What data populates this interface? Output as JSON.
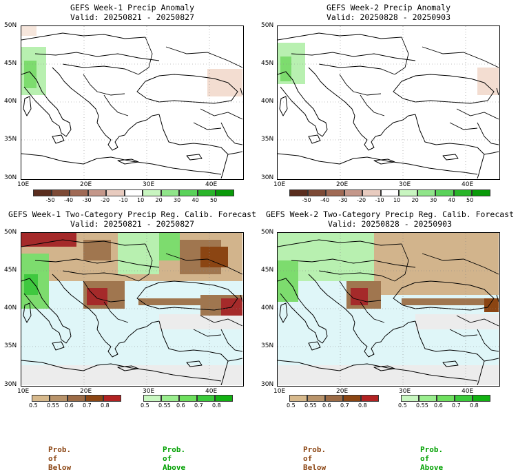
{
  "panels": {
    "tl": {
      "title_line1": "GEFS Week-1 Precip Anomaly",
      "title_line2": "Valid: 20250821 - 20250827",
      "lat_ticks": [
        "50N",
        "45N",
        "40N",
        "35N",
        "30N"
      ],
      "lon_ticks": [
        "10E",
        "20E",
        "30E",
        "40E"
      ]
    },
    "tr": {
      "title_line1": "GEFS Week-2 Precip Anomaly",
      "title_line2": "Valid: 20250828 - 20250903",
      "lat_ticks": [
        "50N",
        "45N",
        "40N",
        "35N",
        "30N"
      ],
      "lon_ticks": [
        "10E",
        "20E",
        "30E",
        "40E"
      ]
    },
    "bl": {
      "title_line1": "GEFS Week-1 Two-Category Precip Reg. Calib. Forecast",
      "title_line2": "Valid: 20250821 - 20250827",
      "lat_ticks": [
        "50N",
        "45N",
        "40N",
        "35N",
        "30N"
      ],
      "lon_ticks": [
        "10E",
        "20E",
        "30E",
        "40E"
      ]
    },
    "br": {
      "title_line1": "GEFS Week-2 Two-Category Precip Reg. Calib. Forecast",
      "title_line2": "Valid: 20250828 - 20250903",
      "lat_ticks": [
        "50N",
        "45N",
        "40N",
        "35N",
        "30N"
      ],
      "lon_ticks": [
        "10E",
        "20E",
        "30E",
        "40E"
      ]
    }
  },
  "anomaly_colorbar": {
    "labels": [
      "-50",
      "-40",
      "-30",
      "-20",
      "-10",
      "10",
      "20",
      "30",
      "40",
      "50"
    ],
    "colors": [
      "#5a2d1e",
      "#7d4a36",
      "#a06a55",
      "#c4978a",
      "#e8cbbf",
      "#ffffff",
      "#c8f5c0",
      "#90e58a",
      "#5ad25a",
      "#2ab52a",
      "#0a9a0a"
    ]
  },
  "prob_colorbar_below": {
    "labels": [
      "0.5",
      "0.55",
      "0.6",
      "0.7",
      "0.8"
    ],
    "colors": [
      "#d7b98c",
      "#b8936a",
      "#9c6b45",
      "#8b4513",
      "#b22222"
    ]
  },
  "prob_colorbar_above": {
    "labels": [
      "0.5",
      "0.55",
      "0.6",
      "0.7",
      "0.8"
    ],
    "colors": [
      "#c8f7c0",
      "#9aee8e",
      "#6ee05e",
      "#3acb3a",
      "#12b212"
    ]
  },
  "labels": {
    "below": "Prob. of Below",
    "above": "Prob. of Above"
  },
  "colors": {
    "ocean_prob": "#dff6f8",
    "nodata_land": "#ececec",
    "below_light": "#d2b48c",
    "below_mid": "#a0764f",
    "below_dark": "#8b4513",
    "below_strong": "#a52a2a",
    "above_light": "#b8f0b0",
    "above_mid": "#7ddc6e",
    "above_strong": "#3fc83f",
    "below_label": "#8b4513",
    "above_label": "#00a000"
  }
}
